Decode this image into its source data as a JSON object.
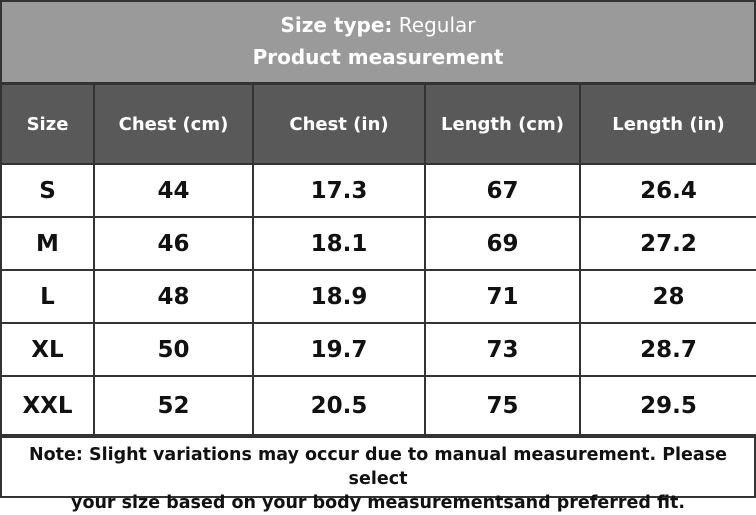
{
  "header": {
    "size_type_label": "Size type:",
    "size_type_value": "Regular",
    "subtitle": "Product measurement"
  },
  "table": {
    "columns": [
      "Size",
      "Chest (cm)",
      "Chest (in)",
      "Length (cm)",
      "Length (in)"
    ],
    "rows": [
      [
        "S",
        "44",
        "17.3",
        "67",
        "26.4"
      ],
      [
        "M",
        "46",
        "18.1",
        "69",
        "27.2"
      ],
      [
        "L",
        "48",
        "18.9",
        "71",
        "28"
      ],
      [
        "XL",
        "50",
        "19.7",
        "73",
        "28.7"
      ],
      [
        "XXL",
        "52",
        "20.5",
        "75",
        "29.5"
      ]
    ]
  },
  "note": {
    "line1": "Note: Slight variations may occur due to manual measurement. Please select",
    "line2": "your size based on your body measurementsand preferred fit."
  },
  "colors": {
    "title_bg": "#9a9a9a",
    "header_bg": "#595959",
    "border": "#333333"
  }
}
